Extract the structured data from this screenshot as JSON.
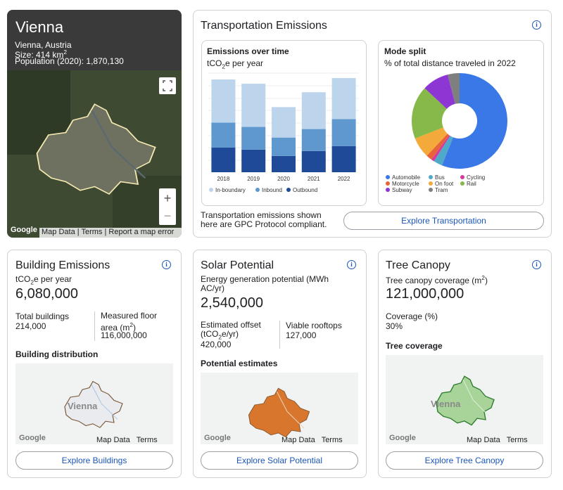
{
  "city_card": {
    "title": "Vienna",
    "subtitle": "Vienna, Austria",
    "size": {
      "label": "Size: 414 km",
      "sup": "2"
    },
    "population": "Population (2020): 1,870,130",
    "map": {
      "brand": "Google",
      "links": [
        "Map Data",
        "Terms",
        "Report a map error"
      ]
    }
  },
  "transportation": {
    "title": "Transportation Emissions",
    "emissions_chart": {
      "type": "bar",
      "stacked": true,
      "title": "Emissions over time",
      "unit": {
        "pre": "tCO",
        "sub": "2",
        "post": "e per year"
      },
      "categories": [
        "2018",
        "2019",
        "2020",
        "2021",
        "2022"
      ],
      "ylim": [
        0,
        140
      ],
      "series": [
        {
          "name": "In-boundary",
          "color": "#bcd4ec",
          "values": [
            61,
            61,
            43,
            52,
            58
          ]
        },
        {
          "name": "Inbound",
          "color": "#5f98cf",
          "values": [
            35,
            32,
            26,
            31,
            38
          ]
        },
        {
          "name": "Outbound",
          "color": "#1f4a98",
          "values": [
            35,
            32,
            23,
            30,
            37
          ]
        }
      ]
    },
    "mode_split": {
      "type": "pie",
      "title": "Mode split",
      "subtitle": "% of total distance traveled in 2022",
      "categories": [
        "Automobile",
        "Bus",
        "Cycling",
        "Motorcycle",
        "On foot",
        "Rail",
        "Subway",
        "Tram"
      ],
      "values": [
        56,
        3,
        1,
        2,
        7,
        18,
        9,
        4
      ],
      "colors": [
        "#3b78e7",
        "#4fa9c9",
        "#d63a9a",
        "#e8633a",
        "#f4a93b",
        "#86b84a",
        "#8e36d4",
        "#7f7f7f"
      ]
    },
    "note": "Transportation emissions shown here are GPC Protocol compliant.",
    "button": "Explore Transportation"
  },
  "buildings": {
    "title": "Building Emissions",
    "unit": {
      "pre": "tCO",
      "sub": "2",
      "post": "e per year"
    },
    "value": "6,080,000",
    "stats": [
      {
        "label": "Total buildings",
        "value": "214,000"
      },
      {
        "label": "Measured floor area (m",
        "sup": "2",
        "post": ")",
        "value": "116,000,000"
      }
    ],
    "section": "Building distribution",
    "map": {
      "place": "Vienna",
      "brand": "Google",
      "links": [
        "Map Data",
        "Terms"
      ]
    },
    "button": "Explore Buildings"
  },
  "solar": {
    "title": "Solar Potential",
    "unit": "Energy generation potential (MWh AC/yr)",
    "value": "2,540,000",
    "stats": [
      {
        "label": "Estimated offset (tCO",
        "sub": "2",
        "post": "e/yr)",
        "value": "420,000"
      },
      {
        "label": "Viable rooftops",
        "value": "127,000"
      }
    ],
    "section": "Potential estimates",
    "map": {
      "brand": "Google",
      "links": [
        "Map Data",
        "Terms"
      ]
    },
    "button": "Explore Solar Potential"
  },
  "trees": {
    "title": "Tree Canopy",
    "unit": {
      "pre": "Tree canopy coverage (m",
      "sup": "2",
      "post": ")"
    },
    "value": "121,000,000",
    "coverage_label": "Coverage (%)",
    "coverage_value": "30%",
    "section": "Tree coverage",
    "map": {
      "place": "Vienna",
      "brand": "Google",
      "links": [
        "Map Data",
        "Terms"
      ]
    },
    "button": "Explore Tree Canopy"
  }
}
